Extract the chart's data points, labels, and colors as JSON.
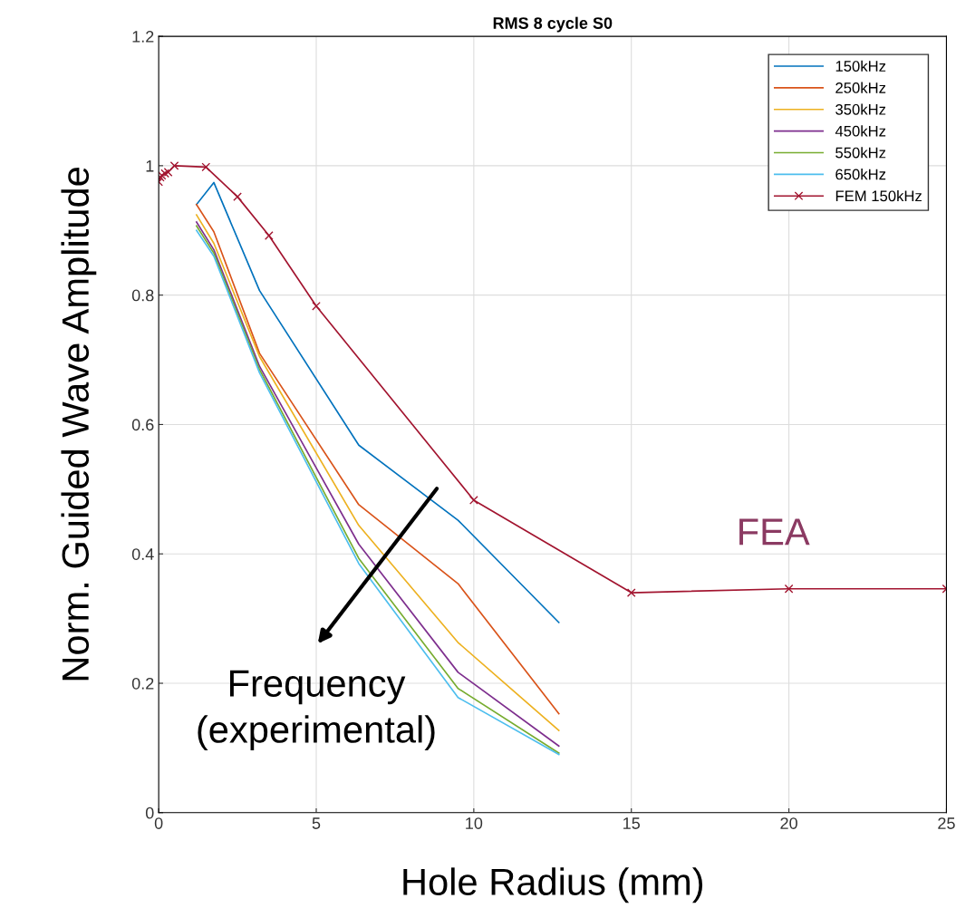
{
  "chart_data": {
    "type": "line",
    "title": "RMS 8 cycle S0",
    "xlabel": "Hole Radius (mm)",
    "ylabel": "Norm. Guided Wave Amplitude",
    "xlim": [
      0,
      25
    ],
    "xticks": [
      0,
      5,
      10,
      15,
      20,
      25
    ],
    "ylim": [
      0,
      1.2
    ],
    "yticks": [
      0,
      0.2,
      0.4,
      0.6,
      0.8,
      1,
      1.2
    ],
    "grid": true,
    "legend": "top right",
    "series": [
      {
        "name": "150kHz",
        "color": "#0072bd",
        "x": [
          1.2,
          1.75,
          3.2,
          6.35,
          9.5,
          12.7
        ],
        "values": [
          0.94,
          0.974,
          0.807,
          0.568,
          0.452,
          0.294
        ]
      },
      {
        "name": "250kHz",
        "color": "#d95319",
        "x": [
          1.2,
          1.75,
          3.2,
          6.35,
          9.5,
          12.7
        ],
        "values": [
          0.94,
          0.898,
          0.71,
          0.476,
          0.354,
          0.153
        ]
      },
      {
        "name": "350kHz",
        "color": "#edb120",
        "x": [
          1.2,
          1.75,
          3.2,
          6.35,
          9.5,
          12.7
        ],
        "values": [
          0.924,
          0.88,
          0.705,
          0.444,
          0.263,
          0.127
        ]
      },
      {
        "name": "450kHz",
        "color": "#7e2f8e",
        "x": [
          1.2,
          1.75,
          3.2,
          6.35,
          9.5,
          12.7
        ],
        "values": [
          0.913,
          0.87,
          0.69,
          0.415,
          0.217,
          0.103
        ]
      },
      {
        "name": "550kHz",
        "color": "#77ac30",
        "x": [
          1.2,
          1.75,
          3.2,
          6.35,
          9.5,
          12.7
        ],
        "values": [
          0.907,
          0.865,
          0.685,
          0.393,
          0.192,
          0.092
        ]
      },
      {
        "name": "650kHz",
        "color": "#4dbeee",
        "x": [
          1.2,
          1.75,
          3.2,
          6.35,
          9.5,
          12.7
        ],
        "values": [
          0.9,
          0.86,
          0.68,
          0.385,
          0.178,
          0.09
        ]
      },
      {
        "name": "FEM 150kHz",
        "color": "#a2142f",
        "marker": "cross",
        "x": [
          0,
          0.05,
          0.1,
          0.2,
          0.3,
          0.5,
          1.5,
          2.5,
          3.5,
          5,
          10,
          15,
          20,
          25
        ],
        "values": [
          0.975,
          0.982,
          0.985,
          0.988,
          0.99,
          1.0,
          0.998,
          0.952,
          0.892,
          0.783,
          0.483,
          0.34,
          0.346,
          0.346
        ]
      }
    ],
    "annotations": [
      "FEA",
      "Frequency\n(experimental)"
    ]
  }
}
